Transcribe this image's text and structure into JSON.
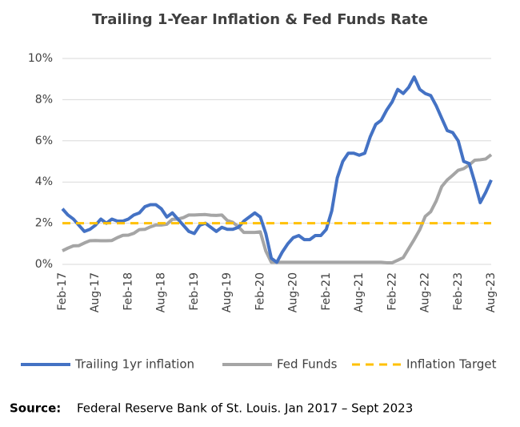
{
  "chart_data": {
    "type": "line",
    "title": "Trailing 1-Year Inflation & Fed Funds Rate",
    "categories": [
      "Feb-17",
      null,
      null,
      null,
      null,
      null,
      "Aug-17",
      null,
      null,
      null,
      null,
      null,
      "Feb-18",
      null,
      null,
      null,
      null,
      null,
      "Aug-18",
      null,
      null,
      null,
      null,
      null,
      "Feb-19",
      null,
      null,
      null,
      null,
      null,
      "Aug-19",
      null,
      null,
      null,
      null,
      null,
      "Feb-20",
      null,
      null,
      null,
      null,
      null,
      "Aug-20",
      null,
      null,
      null,
      null,
      null,
      "Feb-21",
      null,
      null,
      null,
      null,
      null,
      "Aug-21",
      null,
      null,
      null,
      null,
      null,
      "Feb-22",
      null,
      null,
      null,
      null,
      null,
      "Aug-22",
      null,
      null,
      null,
      null,
      null,
      "Feb-23",
      null,
      null,
      null,
      null,
      null,
      "Aug-23"
    ],
    "series": [
      {
        "name": "Trailing 1yr inflation",
        "color": "#4472c4",
        "dash": false,
        "values": [
          2.7,
          2.4,
          2.2,
          1.9,
          1.6,
          1.7,
          1.9,
          2.2,
          2.0,
          2.2,
          2.1,
          2.1,
          2.2,
          2.4,
          2.5,
          2.8,
          2.9,
          2.9,
          2.7,
          2.3,
          2.5,
          2.2,
          1.9,
          1.6,
          1.5,
          1.9,
          2.0,
          1.8,
          1.6,
          1.8,
          1.7,
          1.7,
          1.8,
          2.1,
          2.3,
          2.5,
          2.3,
          1.5,
          0.3,
          0.1,
          0.6,
          1.0,
          1.3,
          1.4,
          1.2,
          1.2,
          1.4,
          1.4,
          1.7,
          2.6,
          4.2,
          5.0,
          5.4,
          5.4,
          5.3,
          5.4,
          6.2,
          6.8,
          7.0,
          7.5,
          7.9,
          8.5,
          8.3,
          8.6,
          9.1,
          8.5,
          8.3,
          8.2,
          7.7,
          7.1,
          6.5,
          6.4,
          6.0,
          5.0,
          4.9,
          4.0,
          3.0,
          3.5,
          4.1
        ]
      },
      {
        "name": "Fed Funds",
        "color": "#a5a5a5",
        "dash": false,
        "values": [
          0.66,
          0.79,
          0.9,
          0.91,
          1.04,
          1.15,
          1.16,
          1.15,
          1.15,
          1.16,
          1.3,
          1.41,
          1.42,
          1.51,
          1.69,
          1.7,
          1.82,
          1.91,
          1.91,
          1.95,
          2.19,
          2.2,
          2.27,
          2.4,
          2.4,
          2.41,
          2.42,
          2.39,
          2.38,
          2.4,
          2.13,
          2.04,
          1.83,
          1.55,
          1.55,
          1.55,
          1.58,
          0.65,
          0.1,
          0.1,
          0.1,
          0.1,
          0.1,
          0.1,
          0.1,
          0.1,
          0.1,
          0.1,
          0.1,
          0.1,
          0.1,
          0.1,
          0.1,
          0.1,
          0.1,
          0.1,
          0.1,
          0.1,
          0.1,
          0.08,
          0.08,
          0.2,
          0.33,
          0.77,
          1.21,
          1.68,
          2.33,
          2.56,
          3.08,
          3.78,
          4.1,
          4.33,
          4.57,
          4.65,
          4.83,
          5.06,
          5.08,
          5.12,
          5.33
        ]
      },
      {
        "name": "Inflation Target",
        "color": "#ffc000",
        "dash": true,
        "values": [
          2,
          2,
          2,
          2,
          2,
          2,
          2,
          2,
          2,
          2,
          2,
          2,
          2,
          2,
          2,
          2,
          2,
          2,
          2,
          2,
          2,
          2,
          2,
          2,
          2,
          2,
          2,
          2,
          2,
          2,
          2,
          2,
          2,
          2,
          2,
          2,
          2,
          2,
          2,
          2,
          2,
          2,
          2,
          2,
          2,
          2,
          2,
          2,
          2,
          2,
          2,
          2,
          2,
          2,
          2,
          2,
          2,
          2,
          2,
          2,
          2,
          2,
          2,
          2,
          2,
          2,
          2,
          2,
          2,
          2,
          2,
          2,
          2,
          2,
          2,
          2,
          2,
          2,
          2
        ]
      }
    ],
    "ylim": [
      0,
      10
    ],
    "yticks": [
      {
        "value": 0,
        "label": "0%"
      },
      {
        "value": 2,
        "label": "2%"
      },
      {
        "value": 4,
        "label": "4%"
      },
      {
        "value": 6,
        "label": "6%"
      },
      {
        "value": 8,
        "label": "8%"
      },
      {
        "value": 10,
        "label": "10%"
      }
    ],
    "grid": true,
    "legend": "bottom",
    "source_label": "Source:",
    "source": "Federal Reserve Bank of St. Louis. Jan 2017 – Sept 2023"
  }
}
